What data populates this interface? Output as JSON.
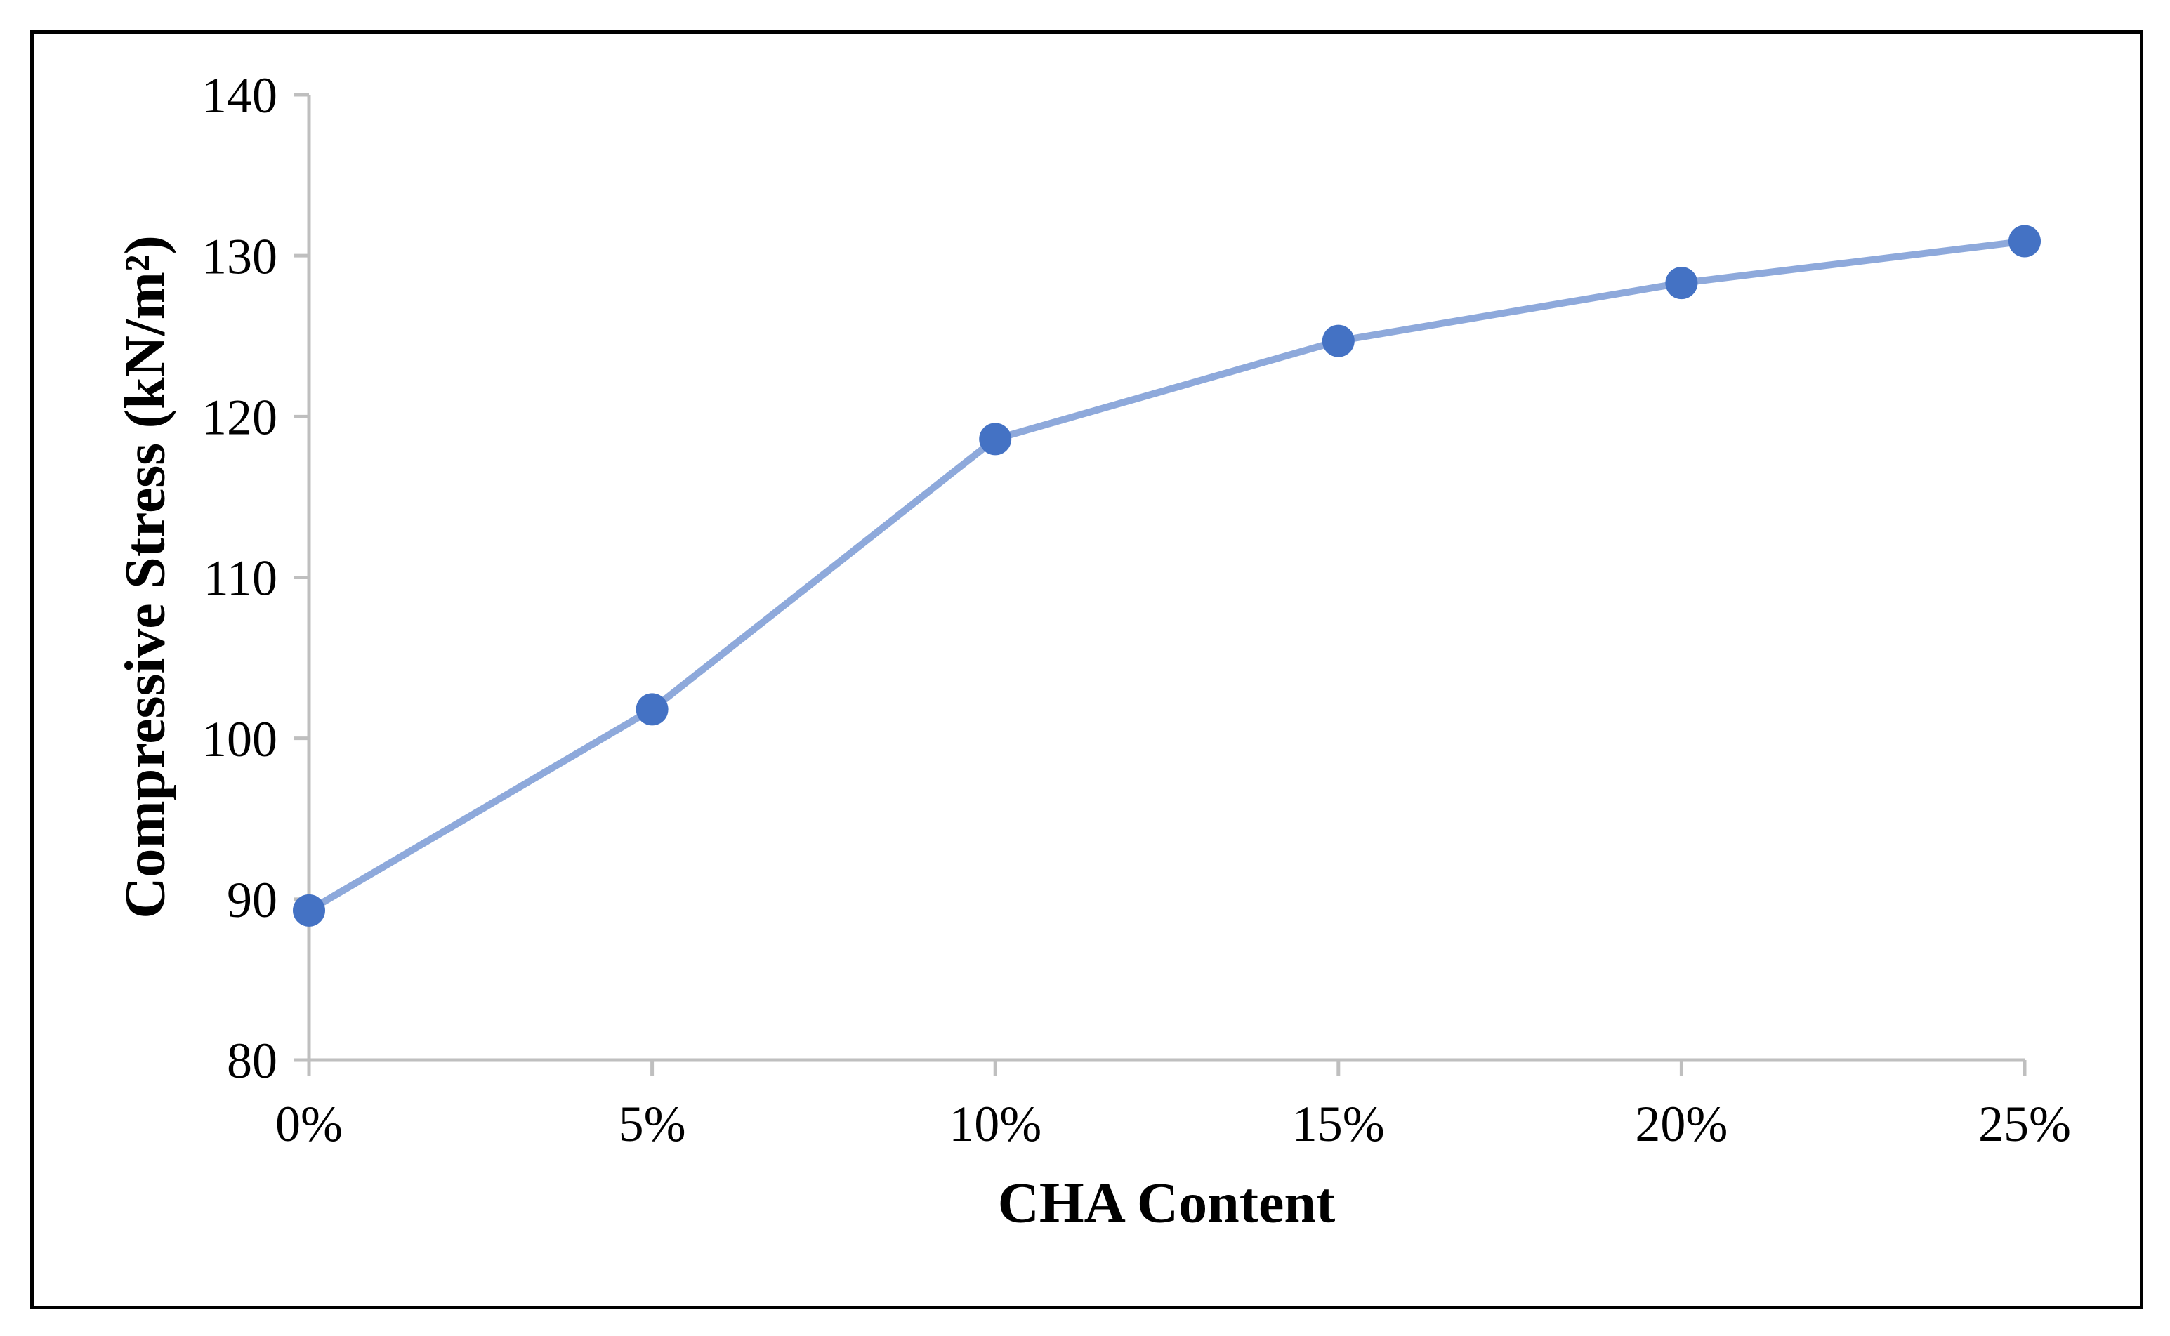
{
  "figure": {
    "background": "#ffffff",
    "border_color": "#000000"
  },
  "chart_data": {
    "type": "line",
    "categories": [
      "0%",
      "5%",
      "10%",
      "15%",
      "20%",
      "25%"
    ],
    "values": [
      89.3,
      101.8,
      118.6,
      124.7,
      128.3,
      130.9
    ],
    "xlabel": "CHA Content",
    "ylabel": "Compressive Stress (kN/m²)",
    "ylim": [
      80,
      140
    ],
    "yticks": [
      80,
      90,
      100,
      110,
      120,
      130,
      140
    ],
    "grid": false,
    "legend": false,
    "line_color": "#8EA9DB",
    "marker_color": "#4472C4",
    "axis_color": "#BFBFBF",
    "text_color": "#000000"
  }
}
